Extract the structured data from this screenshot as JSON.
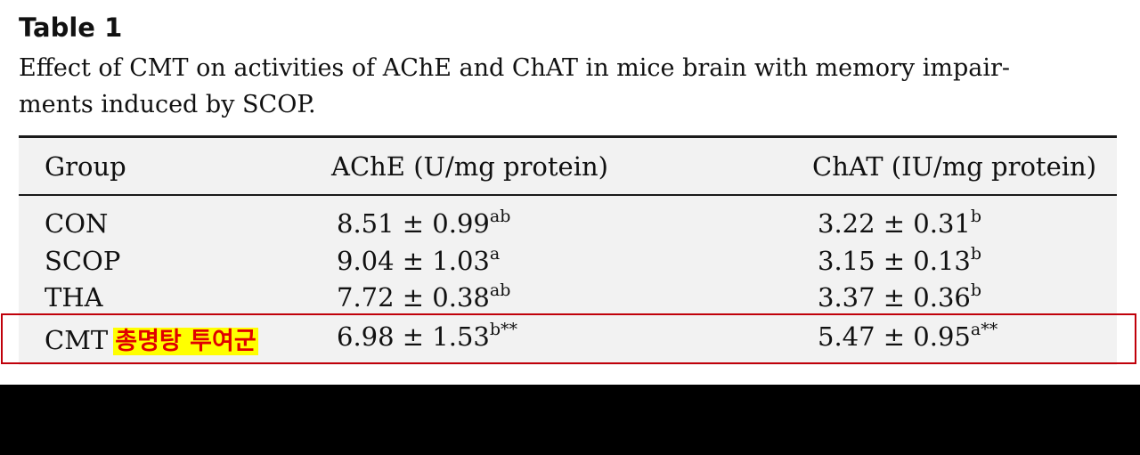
{
  "caption": {
    "title": "Table 1",
    "line1": "Effect of CMT on activities of AChE and ChAT in mice brain with memory impair-",
    "line2": "ments induced by SCOP."
  },
  "table": {
    "headers": [
      "Group",
      "AChE (U/mg protein)",
      "ChAT (IU/mg protein)"
    ],
    "rows": [
      {
        "group": "CON",
        "ache": "8.51 ± 0.99",
        "ache_sup": "ab",
        "chat": "3.22 ± 0.31",
        "chat_sup": "b"
      },
      {
        "group": "SCOP",
        "ache": "9.04 ± 1.03",
        "ache_sup": "a",
        "chat": "3.15 ± 0.13",
        "chat_sup": "b"
      },
      {
        "group": "THA",
        "ache": "7.72 ± 0.38",
        "ache_sup": "ab",
        "chat": "3.37 ± 0.36",
        "chat_sup": "b"
      },
      {
        "group": "CMT",
        "ache": "6.98 ± 1.53",
        "ache_sup": "b**",
        "chat": "5.47 ± 0.95",
        "chat_sup": "a**"
      }
    ]
  },
  "annotation": {
    "label": "총명탕 투여군",
    "highlight_color": "#ffff00",
    "text_color": "#e00000",
    "box_color": "#c0000a"
  }
}
